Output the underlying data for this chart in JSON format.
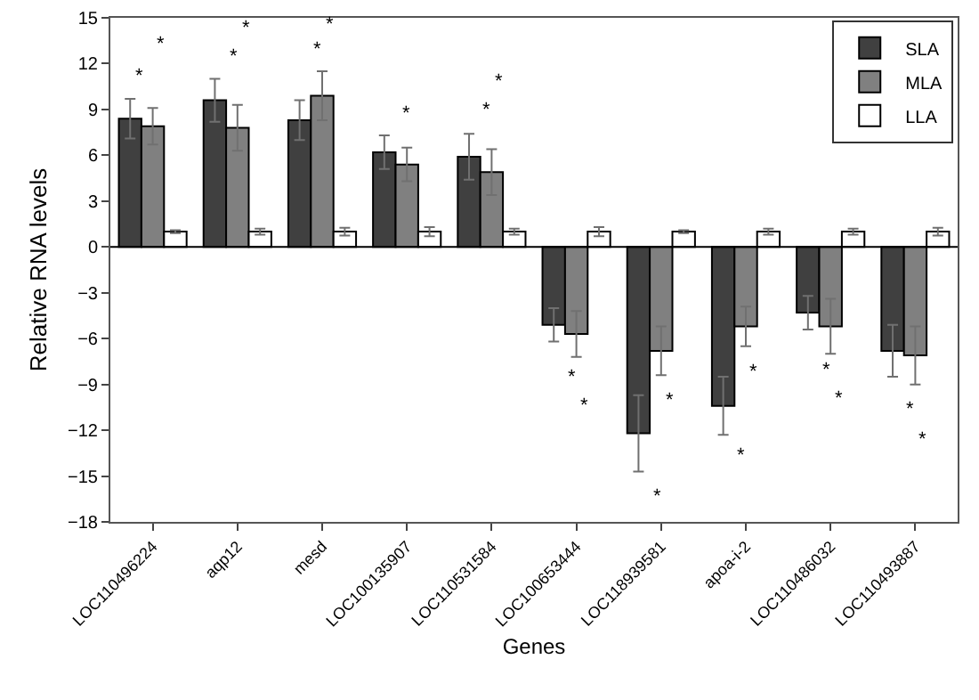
{
  "chart_data": {
    "type": "bar",
    "xlabel": "Genes",
    "ylabel": "Relative RNA levels",
    "categories": [
      "LOC110496224",
      "aqp12",
      "mesd",
      "LOC100135907",
      "LOC110531584",
      "LOC100653444",
      "LOC118939581",
      "apoa-i-2",
      "LOC110486032",
      "LOC110493887"
    ],
    "series": [
      {
        "name": "SLA",
        "color": "#404040",
        "values": [
          8.4,
          9.6,
          8.3,
          6.2,
          5.9,
          -5.1,
          -12.2,
          -10.4,
          -4.3,
          -6.8
        ],
        "errors": [
          1.3,
          1.4,
          1.3,
          1.1,
          1.5,
          1.1,
          2.5,
          1.9,
          1.1,
          1.7
        ]
      },
      {
        "name": "MLA",
        "color": "#808080",
        "values": [
          7.9,
          7.8,
          9.9,
          5.4,
          4.9,
          -5.7,
          -6.8,
          -5.2,
          -5.2,
          -7.1
        ],
        "errors": [
          1.2,
          1.5,
          1.6,
          1.1,
          1.5,
          1.5,
          1.6,
          1.3,
          1.8,
          1.9
        ]
      },
      {
        "name": "LLA",
        "color": "#ffffff",
        "values": [
          1.0,
          1.0,
          1.0,
          1.0,
          1.0,
          1.0,
          1.0,
          1.0,
          1.0,
          1.0
        ],
        "errors": [
          0.1,
          0.2,
          0.25,
          0.3,
          0.2,
          0.3,
          0.1,
          0.2,
          0.2,
          0.25
        ]
      }
    ],
    "ylim": [
      -18,
      15
    ],
    "yticks": [
      -18,
      -15,
      -12,
      -9,
      -6,
      -3,
      0,
      3,
      6,
      9,
      12,
      15
    ],
    "grid": false,
    "legend": "top right",
    "ref_lines": [
      {
        "axis": "y",
        "value": 0,
        "color": "#000000"
      }
    ],
    "annotations": [
      "*",
      "*",
      "*",
      "*",
      "*",
      "*",
      "*",
      "*",
      "*",
      "*",
      "*",
      "*",
      "*",
      "*",
      "*",
      "*",
      "*",
      "*",
      "*"
    ]
  }
}
